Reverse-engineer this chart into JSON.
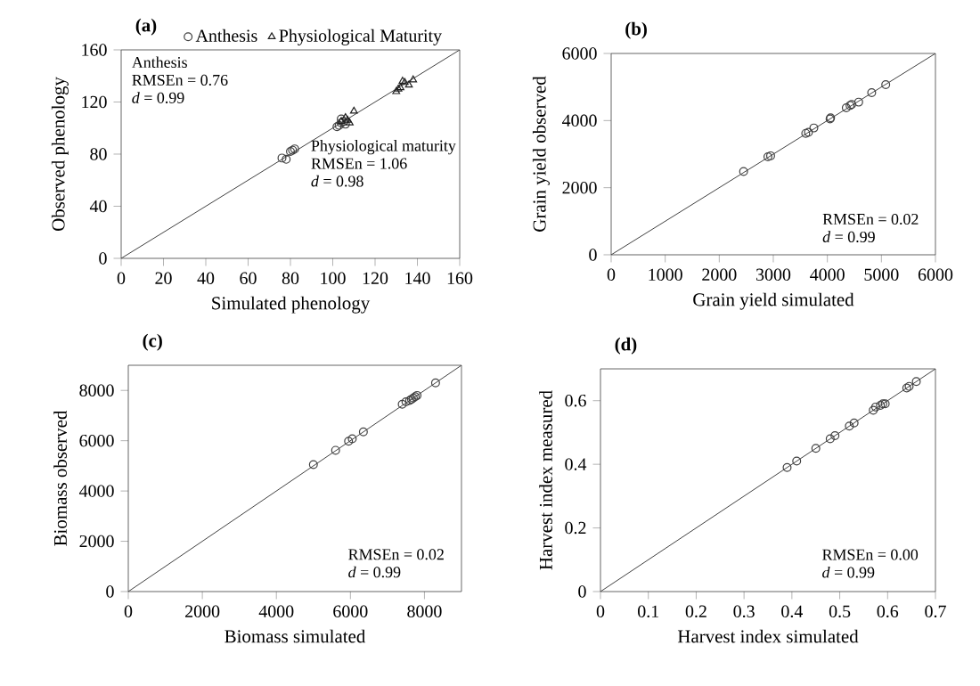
{
  "chart_data": [
    {
      "type": "scatter",
      "title": "(a)",
      "xlabel": "Simulated  phenology",
      "ylabel": "Observed phenology",
      "xlim": [
        0,
        160
      ],
      "ylim": [
        0,
        160
      ],
      "xticks": [
        0,
        20,
        40,
        60,
        80,
        100,
        120,
        140,
        160
      ],
      "yticks": [
        0,
        40,
        80,
        120,
        160
      ],
      "legend": "top",
      "annotations": [
        "Anthesis",
        "RMSEn = 0.76",
        "*d* = 0.99",
        "Physiological maturity",
        "RMSEn = 1.06",
        "*d* = 0.98"
      ],
      "series": [
        {
          "name": "Anthesis",
          "marker": "circle",
          "color": "#404040",
          "x": [
            76,
            78,
            80,
            81,
            82,
            102,
            103,
            104,
            105,
            106,
            104
          ],
          "values": [
            77,
            76,
            82,
            83,
            84,
            101,
            102,
            104,
            105,
            103,
            107
          ]
        },
        {
          "name": "Physiological Maturity",
          "marker": "triangle",
          "color": "#202020",
          "x": [
            104,
            106,
            107,
            108,
            110,
            130,
            131,
            132,
            134,
            136,
            138,
            133
          ],
          "values": [
            105,
            108,
            106,
            104,
            113,
            128,
            130,
            131,
            135,
            133,
            137,
            136
          ]
        },
        {
          "type": "line",
          "marker": "none",
          "color": "#404040",
          "x": [
            0,
            160
          ],
          "values": [
            0,
            160
          ]
        }
      ]
    },
    {
      "type": "scatter",
      "title": "(b)",
      "xlabel": "Grain yield  simulated",
      "ylabel": "Grain yield  observed",
      "xlim": [
        0,
        6000
      ],
      "ylim": [
        0,
        6000
      ],
      "xticks": [
        0,
        1000,
        2000,
        3000,
        4000,
        5000,
        6000
      ],
      "yticks": [
        0,
        2000,
        4000,
        6000
      ],
      "marker": "circle",
      "annotations": [
        "RMSEn = 0.02",
        "*d* = 0.99"
      ],
      "series": [
        {
          "color": "#404040",
          "x": [
            2450,
            2900,
            2950,
            3600,
            3650,
            3750,
            4050,
            4060,
            4350,
            4420,
            4450,
            4580,
            4820,
            5080
          ],
          "values": [
            2480,
            2920,
            2950,
            3620,
            3650,
            3780,
            4050,
            4080,
            4380,
            4450,
            4480,
            4550,
            4830,
            5070
          ]
        },
        {
          "type": "line",
          "marker": "none",
          "color": "#404040",
          "x": [
            0,
            6000
          ],
          "values": [
            0,
            6000
          ]
        }
      ]
    },
    {
      "type": "scatter",
      "title": "(c)",
      "xlabel": "Biomass simulated",
      "ylabel": "Biomass observed",
      "xlim": [
        0,
        9000
      ],
      "ylim": [
        0,
        9000
      ],
      "xticks": [
        0,
        2000,
        4000,
        6000,
        8000
      ],
      "yticks": [
        0,
        2000,
        4000,
        6000,
        8000
      ],
      "marker": "circle",
      "annotations": [
        "RMSEn = 0.02",
        "*d* = 0.99"
      ],
      "series": [
        {
          "color": "#404040",
          "x": [
            5000,
            5600,
            5950,
            6050,
            6350,
            7400,
            7500,
            7600,
            7650,
            7700,
            7750,
            7800,
            8300
          ],
          "values": [
            5050,
            5620,
            5980,
            6080,
            6350,
            7450,
            7550,
            7600,
            7650,
            7700,
            7750,
            7800,
            8300
          ]
        },
        {
          "type": "line",
          "marker": "none",
          "color": "#404040",
          "x": [
            0,
            9000
          ],
          "values": [
            0,
            9000
          ]
        }
      ]
    },
    {
      "type": "scatter",
      "title": "(d)",
      "xlabel": "Harvest index simulated",
      "ylabel": "Harvest index measured",
      "xlim": [
        0,
        0.7
      ],
      "ylim": [
        0,
        0.7
      ],
      "xticks": [
        0,
        0.1,
        0.2,
        0.3,
        0.4,
        0.5,
        0.6,
        0.7
      ],
      "yticks": [
        0,
        0.2,
        0.4,
        0.6
      ],
      "marker": "circle",
      "annotations": [
        "RMSEn = 0.00",
        "*d* = 0.99"
      ],
      "series": [
        {
          "color": "#404040",
          "x": [
            0.39,
            0.41,
            0.45,
            0.48,
            0.49,
            0.52,
            0.53,
            0.57,
            0.575,
            0.585,
            0.59,
            0.595,
            0.64,
            0.645,
            0.66
          ],
          "values": [
            0.39,
            0.41,
            0.45,
            0.48,
            0.49,
            0.52,
            0.53,
            0.57,
            0.58,
            0.585,
            0.59,
            0.59,
            0.64,
            0.645,
            0.66
          ]
        },
        {
          "type": "line",
          "marker": "none",
          "color": "#404040",
          "x": [
            0,
            0.7
          ],
          "values": [
            0,
            0.7
          ]
        }
      ]
    }
  ]
}
